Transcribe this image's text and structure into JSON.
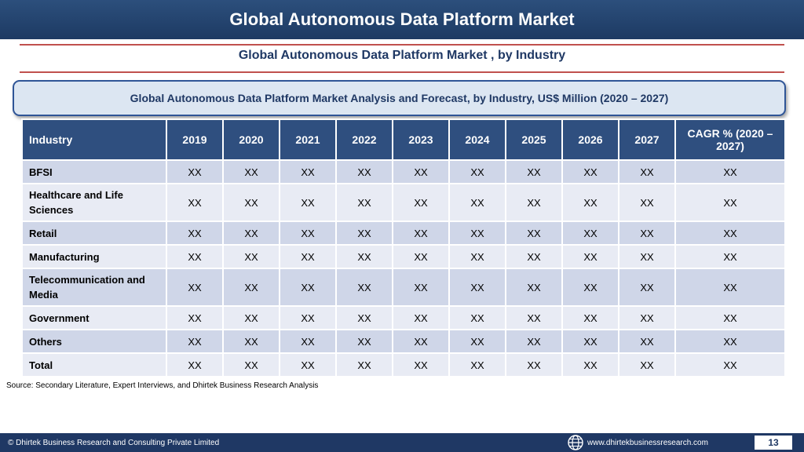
{
  "header": {
    "title": "Global Autonomous Data Platform Market"
  },
  "subtitle": "Global Autonomous Data Platform Market , by Industry",
  "analysis_title": "Global Autonomous Data Platform Market  Analysis and Forecast, by Industry, US$ Million (2020 – 2027)",
  "table": {
    "columns": [
      "Industry",
      "2019",
      "2020",
      "2021",
      "2022",
      "2023",
      "2024",
      "2025",
      "2026",
      "2027",
      "CAGR % (2020 – 2027)"
    ],
    "rows": [
      {
        "label": "BFSI",
        "values": [
          "XX",
          "XX",
          "XX",
          "XX",
          "XX",
          "XX",
          "XX",
          "XX",
          "XX",
          "XX"
        ]
      },
      {
        "label": "Healthcare and Life Sciences",
        "values": [
          "XX",
          "XX",
          "XX",
          "XX",
          "XX",
          "XX",
          "XX",
          "XX",
          "XX",
          "XX"
        ]
      },
      {
        "label": "Retail",
        "values": [
          "XX",
          "XX",
          "XX",
          "XX",
          "XX",
          "XX",
          "XX",
          "XX",
          "XX",
          "XX"
        ]
      },
      {
        "label": "Manufacturing",
        "values": [
          "XX",
          "XX",
          "XX",
          "XX",
          "XX",
          "XX",
          "XX",
          "XX",
          "XX",
          "XX"
        ]
      },
      {
        "label": "Telecommunication and Media",
        "values": [
          "XX",
          "XX",
          "XX",
          "XX",
          "XX",
          "XX",
          "XX",
          "XX",
          "XX",
          "XX"
        ]
      },
      {
        "label": "Government",
        "values": [
          "XX",
          "XX",
          "XX",
          "XX",
          "XX",
          "XX",
          "XX",
          "XX",
          "XX",
          "XX"
        ]
      },
      {
        "label": "Others",
        "values": [
          "XX",
          "XX",
          "XX",
          "XX",
          "XX",
          "XX",
          "XX",
          "XX",
          "XX",
          "XX"
        ]
      },
      {
        "label": "Total",
        "values": [
          "XX",
          "XX",
          "XX",
          "XX",
          "XX",
          "XX",
          "XX",
          "XX",
          "XX",
          "XX"
        ]
      }
    ]
  },
  "source": "Source: Secondary Literature, Expert Interviews, and Dhirtek Business Research Analysis",
  "footer": {
    "copyright": "© Dhirtek Business Research and Consulting Private Limited",
    "website": "www.dhirtekbusinessresearch.com",
    "page_number": "13",
    "globe_icon": "globe-icon"
  },
  "colors": {
    "header_bg": "#1d3a63",
    "table_header_bg": "#2f4f7f",
    "row_odd": "#cfd6e8",
    "row_even": "#e8ebf4",
    "accent_rule": "#c0504d",
    "box_bg": "#dce6f2"
  }
}
